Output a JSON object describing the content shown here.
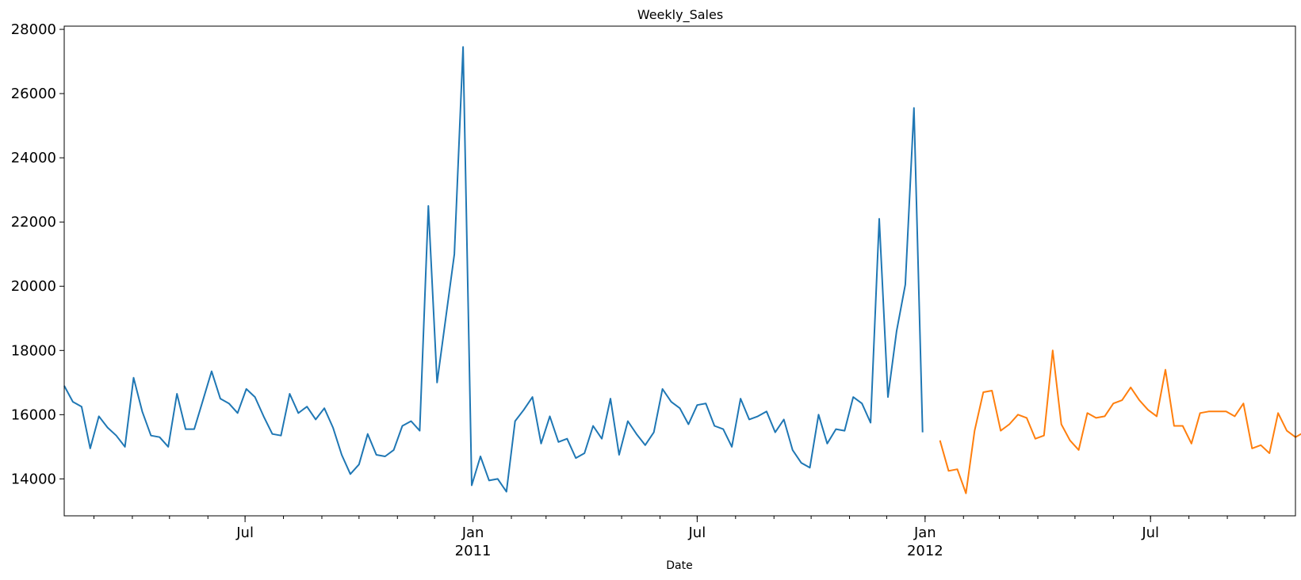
{
  "chart_data": {
    "type": "line",
    "title": "Weekly_Sales",
    "xlabel": "Date",
    "ylabel": "",
    "ylim": [
      12850,
      28100
    ],
    "xlim": [
      "2010-02-05",
      "2012-10-26"
    ],
    "grid": false,
    "yticks": [
      14000,
      16000,
      18000,
      20000,
      22000,
      24000,
      26000,
      28000
    ],
    "xtick_labels": [
      {
        "date": "2010-07-01",
        "label": "Jul",
        "sublabel": ""
      },
      {
        "date": "2011-01-01",
        "label": "Jan",
        "sublabel": "2011"
      },
      {
        "date": "2011-07-01",
        "label": "Jul",
        "sublabel": ""
      },
      {
        "date": "2012-01-01",
        "label": "Jan",
        "sublabel": "2012"
      },
      {
        "date": "2012-07-01",
        "label": "Jul",
        "sublabel": ""
      }
    ],
    "x_start": "2010-02-05",
    "x_step_days": 7,
    "series": [
      {
        "color": "#1f77b4",
        "start_index": 0,
        "values": [
          16900,
          16400,
          16250,
          14950,
          15950,
          15600,
          15350,
          15000,
          17150,
          16100,
          15350,
          15300,
          15000,
          16650,
          15550,
          15550,
          16450,
          17350,
          16500,
          16350,
          16050,
          16800,
          16550,
          15950,
          15400,
          15350,
          16650,
          16050,
          16250,
          15850,
          16200,
          15600,
          14750,
          14150,
          14450,
          15400,
          14750,
          14700,
          14900,
          15650,
          15800,
          15500,
          22500,
          17000,
          19000,
          21000,
          27450,
          13800,
          14700,
          13950,
          14000,
          13600,
          15800,
          16150,
          16550,
          15100,
          15950,
          15150,
          15250,
          14650,
          14800,
          15650,
          15250,
          16500,
          14750,
          15800,
          15400,
          15050,
          15450,
          16800,
          16400,
          16200,
          15700,
          16300,
          16350,
          15650,
          15550,
          15000,
          16500,
          15850,
          15950,
          16100,
          15450,
          15850,
          14900,
          14500,
          14350,
          16000,
          15100,
          15550,
          15500,
          16550,
          16350,
          15750,
          22100,
          16550,
          18600,
          20050,
          25550,
          15450
        ]
      },
      {
        "color": "#ff7f0e",
        "start_index": 101,
        "values": [
          15200,
          14250,
          14300,
          13550,
          15500,
          16700,
          16750,
          15500,
          15700,
          16000,
          15900,
          15250,
          15350,
          18000,
          15700,
          15200,
          14900,
          16050,
          15900,
          15950,
          16350,
          16450,
          16850,
          16450,
          16150,
          15950,
          17400,
          15650,
          15650,
          15100,
          16050,
          16100,
          16100,
          16100,
          15950,
          16350,
          14950,
          15050,
          14800,
          16050,
          15500,
          15300,
          15450
        ]
      }
    ]
  }
}
